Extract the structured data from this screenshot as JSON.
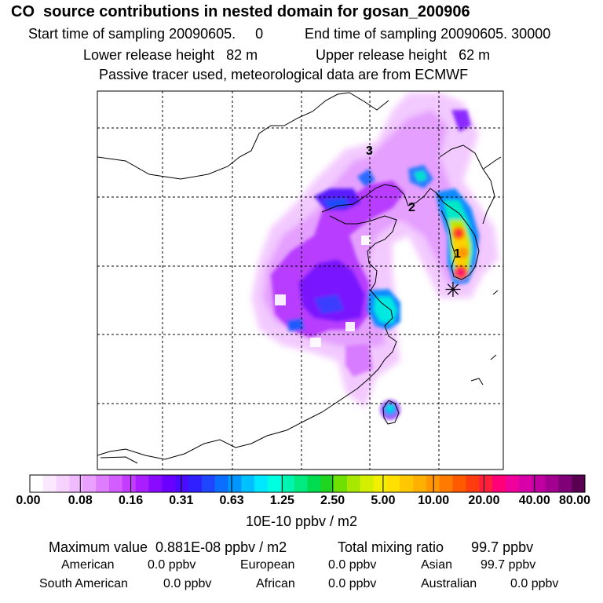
{
  "header": {
    "title": "CO  source contributions in nested domain for gosan_200906",
    "start_label": "Start time of sampling 20090605.     0",
    "end_label": "End time of sampling 20090605. 30000",
    "lower_label": "Lower release height   82 m",
    "upper_label": "Upper release height   62 m",
    "tracer_note": "Passive tracer used, meteorological data are from ECMWF"
  },
  "map": {
    "markers": [
      "1",
      "2",
      "3"
    ],
    "receptor_symbol": "✳"
  },
  "colorbar": {
    "tick_labels": [
      "0.00",
      "0.08",
      "0.16",
      "0.31",
      "0.63",
      "1.25",
      "2.50",
      "5.00",
      "10.00",
      "20.00",
      "40.00",
      "80.00"
    ],
    "colors": [
      "#ffffff",
      "#fbe8ff",
      "#f6d2ff",
      "#f0baff",
      "#e9a0ff",
      "#df7dff",
      "#d35cff",
      "#c33cff",
      "#a81eff",
      "#8a0aff",
      "#6a00ff",
      "#4b0bff",
      "#3020ff",
      "#1e46ff",
      "#0a6fff",
      "#0096ff",
      "#00c0ff",
      "#00e8ff",
      "#00ffe0",
      "#00f5b0",
      "#00ea80",
      "#00dc50",
      "#1fd520",
      "#6fe000",
      "#a8e800",
      "#d4f000",
      "#f2f000",
      "#ffe000",
      "#ffc800",
      "#ffb000",
      "#ff9600",
      "#ff7a00",
      "#ff5a00",
      "#ff3c10",
      "#ff1e3c",
      "#ff0078",
      "#f0009c",
      "#d800a8",
      "#c000a0",
      "#a20090",
      "#800078",
      "#5a0050"
    ],
    "unit_label": "10E-10 ppbv / m2"
  },
  "stats": {
    "max_label": "Maximum value  0.881E-08 ppbv / m2",
    "total_label": "Total mixing ratio       99.7 ppbv",
    "regions": [
      {
        "name": "American",
        "value": "0.0 ppbv"
      },
      {
        "name": "European",
        "value": "0.0 ppbv"
      },
      {
        "name": "Asian",
        "value": "99.7 ppbv"
      },
      {
        "name": "South American",
        "value": "0.0 ppbv"
      },
      {
        "name": "African",
        "value": "0.0 ppbv"
      },
      {
        "name": "Australian",
        "value": "0.0 ppbv"
      }
    ]
  }
}
